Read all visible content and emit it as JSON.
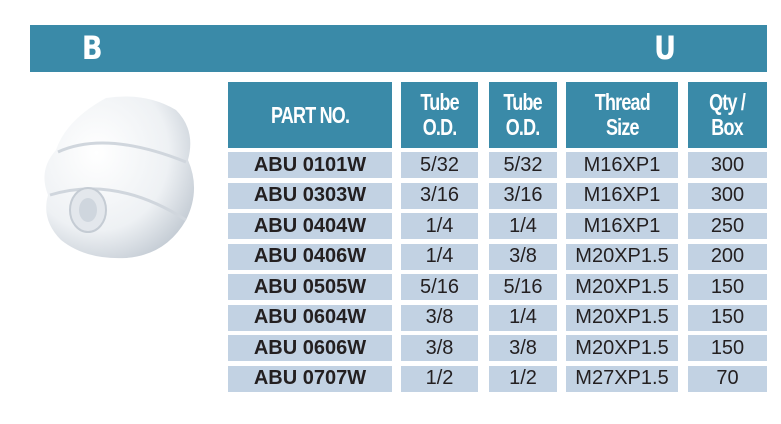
{
  "banner": {
    "left_letter": "B",
    "right_letter": "U",
    "color": "#3a8aa8"
  },
  "table": {
    "headers": [
      {
        "line1": "PART NO.",
        "line2": ""
      },
      {
        "line1": "Tube",
        "line2": "O.D."
      },
      {
        "line1": "Tube",
        "line2": "O.D."
      },
      {
        "line1": "Thread",
        "line2": "Size"
      },
      {
        "line1": "Qty /",
        "line2": "Box"
      }
    ],
    "rows": [
      [
        "ABU 0101W",
        "5/32",
        "5/32",
        "M16XP1",
        "300"
      ],
      [
        "ABU 0303W",
        "3/16",
        "3/16",
        "M16XP1",
        "300"
      ],
      [
        "ABU 0404W",
        "1/4",
        "1/4",
        "M16XP1",
        "250"
      ],
      [
        "ABU 0406W",
        "1/4",
        "3/8",
        "M20XP1.5",
        "200"
      ],
      [
        "ABU 0505W",
        "5/16",
        "5/16",
        "M20XP1.5",
        "150"
      ],
      [
        "ABU 0604W",
        "3/8",
        "1/4",
        "M20XP1.5",
        "150"
      ],
      [
        "ABU 0606W",
        "3/8",
        "3/8",
        "M20XP1.5",
        "150"
      ],
      [
        "ABU 0707W",
        "1/2",
        "1/2",
        "M27XP1.5",
        "70"
      ]
    ],
    "header_color": "#3a8aa8",
    "row_color": "#c2d2e3"
  }
}
